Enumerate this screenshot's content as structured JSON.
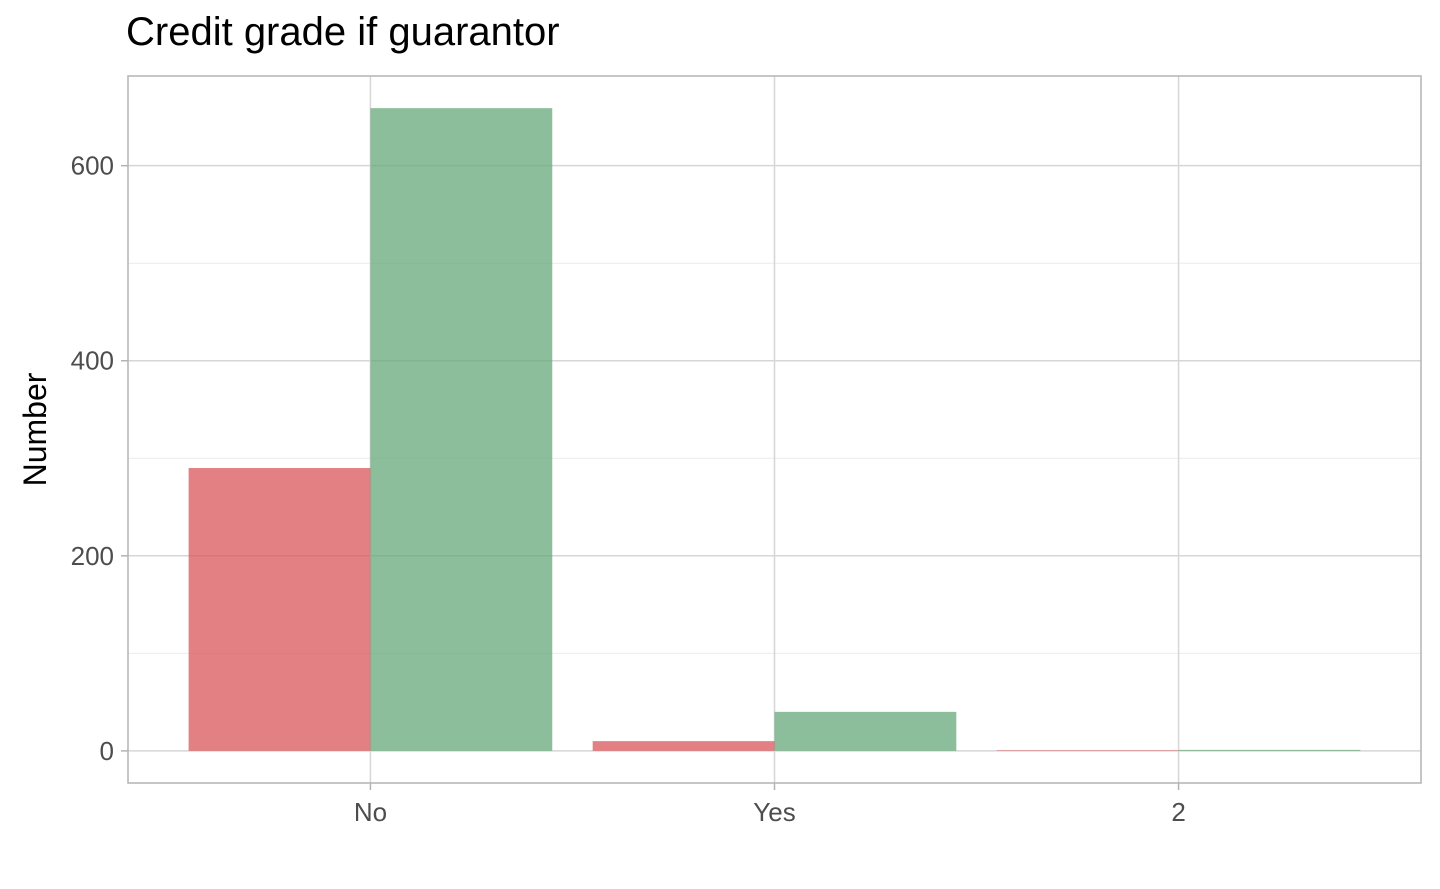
{
  "chart_data": {
    "type": "bar",
    "title": "Credit grade if guarantor",
    "xlabel": "",
    "ylabel": "Number",
    "categories": [
      "No",
      "Yes",
      "2"
    ],
    "series": [
      {
        "values": [
          290,
          10,
          0.5
        ],
        "color": "#d9565a"
      },
      {
        "values": [
          659,
          40,
          1
        ],
        "color": "#66a87a"
      }
    ],
    "ylim": [
      -32.95,
      691.95
    ],
    "yticks": [
      0,
      200,
      400,
      600
    ],
    "grid": true,
    "legend": "none"
  }
}
